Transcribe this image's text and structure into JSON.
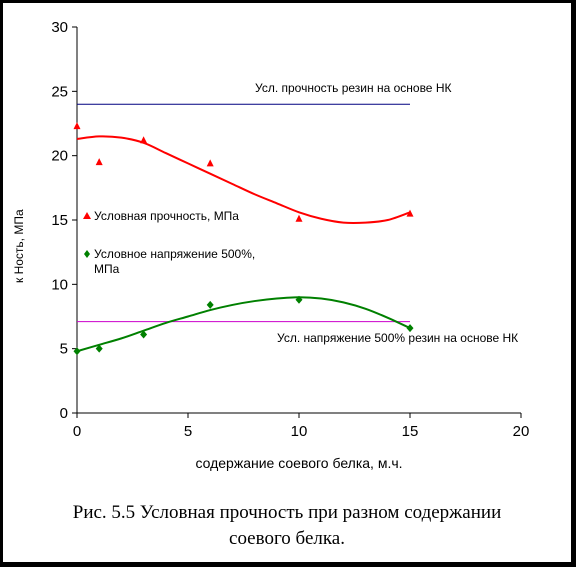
{
  "caption": {
    "line1": "Рис. 5.5 Условная прочность при разном содержании",
    "line2": "соевого белка."
  },
  "chart_data": {
    "type": "scatter",
    "xlabel": "содержание соевого белка, м.ч.",
    "ylabel_fragment": "к Ность, МПа",
    "xlim": [
      0,
      20
    ],
    "ylim": [
      0,
      30
    ],
    "xticks": [
      "0",
      "5",
      "10",
      "15",
      "20"
    ],
    "yticks": [
      "0",
      "5",
      "10",
      "15",
      "20",
      "25",
      "30"
    ],
    "grid": false,
    "series": [
      {
        "name": "Условная прочность, МПа",
        "marker": "triangle",
        "color": "#ff0000",
        "x": [
          0,
          1,
          3,
          6,
          10,
          15
        ],
        "y": [
          22.3,
          19.5,
          21.2,
          19.4,
          15.1,
          15.5
        ],
        "trend_x": [
          0,
          1,
          2,
          3,
          4,
          5,
          6,
          7,
          8,
          9,
          10,
          11,
          12,
          13,
          14,
          15
        ],
        "trend_y": [
          21.3,
          21.5,
          21.4,
          21.0,
          20.2,
          19.4,
          18.6,
          17.8,
          17.0,
          16.3,
          15.6,
          15.1,
          14.8,
          14.8,
          15.0,
          15.6
        ]
      },
      {
        "name": "Условное напряжение 500%, МПа",
        "name_line1": "Условное напряжение 500%,",
        "name_line2": "МПа",
        "marker": "diamond",
        "color": "#008000",
        "x": [
          0,
          1,
          3,
          6,
          10,
          15
        ],
        "y": [
          4.8,
          5.0,
          6.1,
          8.4,
          8.8,
          6.6
        ],
        "trend_x": [
          0,
          1,
          2,
          3,
          4,
          5,
          6,
          7,
          8,
          9,
          10,
          11,
          12,
          13,
          14,
          15
        ],
        "trend_y": [
          4.8,
          5.3,
          5.8,
          6.4,
          7.0,
          7.5,
          8.0,
          8.4,
          8.7,
          8.9,
          9.0,
          8.9,
          8.6,
          8.1,
          7.4,
          6.6
        ]
      }
    ],
    "reference_lines": [
      {
        "label": "Усл. прочность резин на основе НК",
        "y": 24,
        "x_from": 0,
        "x_to": 15,
        "color": "#000080"
      },
      {
        "label": "Усл. напряжение 500% резин на основе НК",
        "y": 7.1,
        "x_from": 0,
        "x_to": 15,
        "color": "#cc00cc"
      }
    ]
  }
}
